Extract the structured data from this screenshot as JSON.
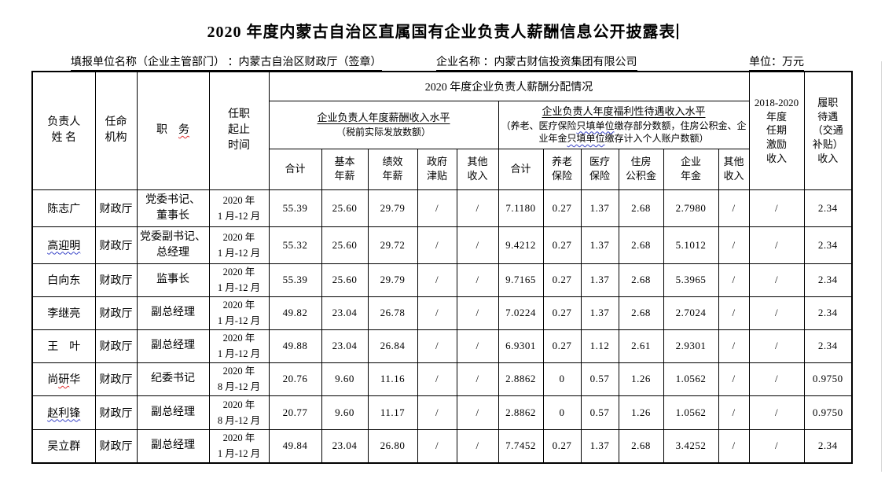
{
  "page": {
    "title": "2020 年度内蒙古自治区直属国有企业负责人薪酬信息公开披露表",
    "info": {
      "report_unit": "填报单位名称（企业主管部门） ：内蒙古自治区财政厅（签章）",
      "company": "企业名称 ：内蒙古财信投资集团有限公司",
      "unit": "单位：万元"
    }
  },
  "table": {
    "header": {
      "name_col": "负责人\n姓  名",
      "agency_col": "任命\n机构",
      "position_col_char1": "职",
      "position_col_char2": "务",
      "term_col": "任职\n起止\n时间",
      "dist_group": "2020 年度企业负责人薪酬分配情况",
      "salary_group_title": "企业负责人年度薪酬收入水平",
      "salary_group_note": "（税前实际发放数额）",
      "welfare_group_title": "企业负责人年度福利性待遇收入水平",
      "welfare_note": {
        "p1": "（养老、医疗保险",
        "m1": "只填单位",
        "p2": "缴存部分数额，住房公积金、企业年金",
        "m2": "只填单位",
        "p3": "缴存计入个人账户数额）"
      },
      "salary_cols": [
        "合计",
        "基本\n年薪",
        "绩效\n年薪",
        "政府\n津贴",
        "其他\n收入"
      ],
      "welfare_cols": [
        "合计",
        "养老\n保险",
        "医疗\n保险",
        "住房\n公积金",
        "企业\n年金",
        "其他\n收入"
      ],
      "tenure_col": "2018-2020\n年度\n任期\n激励\n收入",
      "duty_col": "履职\n待遇\n（交通\n补贴）\n收入"
    },
    "rows": [
      {
        "name": [
          {
            "t": "陈志广",
            "m": ""
          }
        ],
        "agency": "财政厅",
        "position": "党委书记、\n董事长",
        "term": "2020 年\n1 月-12 月",
        "values": [
          "55.39",
          "25.60",
          "29.79",
          "/",
          "/",
          "7.1180",
          "0.27",
          "1.37",
          "2.68",
          "2.7980",
          "/",
          "/",
          "2.34"
        ]
      },
      {
        "name": [
          {
            "t": "高迎明",
            "m": "blue"
          }
        ],
        "agency": "财政厅",
        "position": "党委副书记、\n总经理",
        "term": "2020 年\n1 月-12 月",
        "values": [
          "55.32",
          "25.60",
          "29.72",
          "/",
          "/",
          "9.4212",
          "0.27",
          "1.37",
          "2.68",
          "5.1012",
          "/",
          "/",
          "2.34"
        ]
      },
      {
        "name": [
          {
            "t": "白向东",
            "m": ""
          }
        ],
        "agency": "财政厅",
        "position": "监事长",
        "term": "2020 年\n1 月-12 月",
        "values": [
          "55.39",
          "25.60",
          "29.79",
          "/",
          "/",
          "9.7165",
          "0.27",
          "1.37",
          "2.68",
          "5.3965",
          "/",
          "/",
          "2.34"
        ]
      },
      {
        "name": [
          {
            "t": "李继亮",
            "m": ""
          }
        ],
        "agency": "财政厅",
        "position": "副总经理",
        "term": "2020 年\n1 月-12 月",
        "values": [
          "49.82",
          "23.04",
          "26.78",
          "/",
          "/",
          "7.0224",
          "0.27",
          "1.37",
          "2.68",
          "2.7024",
          "/",
          "/",
          "2.34"
        ]
      },
      {
        "name": [
          {
            "t": "王　叶",
            "m": ""
          }
        ],
        "agency": "财政厅",
        "position": "副总经理",
        "term": "2020 年\n1 月-12 月",
        "values": [
          "49.88",
          "23.04",
          "26.84",
          "/",
          "/",
          "6.9301",
          "0.27",
          "1.12",
          "2.61",
          "2.9301",
          "/",
          "/",
          "2.34"
        ]
      },
      {
        "name": [
          {
            "t": "尚",
            "m": ""
          },
          {
            "t": "研",
            "m": "red"
          },
          {
            "t": "华",
            "m": ""
          }
        ],
        "agency": "财政厅",
        "position": "纪委书记",
        "term": "2020 年\n8 月-12 月",
        "values": [
          "20.76",
          "9.60",
          "11.16",
          "/",
          "/",
          "2.8862",
          "0",
          "0.57",
          "1.26",
          "1.0562",
          "/",
          "/",
          "0.9750"
        ]
      },
      {
        "name": [
          {
            "t": "赵利锋",
            "m": "blue"
          }
        ],
        "agency": "财政厅",
        "position": "副总经理",
        "term": "2020 年\n8 月-12 月",
        "values": [
          "20.77",
          "9.60",
          "11.17",
          "/",
          "/",
          "2.8862",
          "0",
          "0.57",
          "1.26",
          "1.0562",
          "/",
          "/",
          "0.9750"
        ]
      },
      {
        "name": [
          {
            "t": "吴立群",
            "m": ""
          }
        ],
        "agency": "财政厅",
        "position": "副总经理",
        "term": "2020 年\n1 月-12 月",
        "values": [
          "49.84",
          "23.04",
          "26.80",
          "/",
          "/",
          "7.7452",
          "0.27",
          "1.37",
          "2.68",
          "3.4252",
          "/",
          "/",
          "2.34"
        ]
      }
    ]
  }
}
